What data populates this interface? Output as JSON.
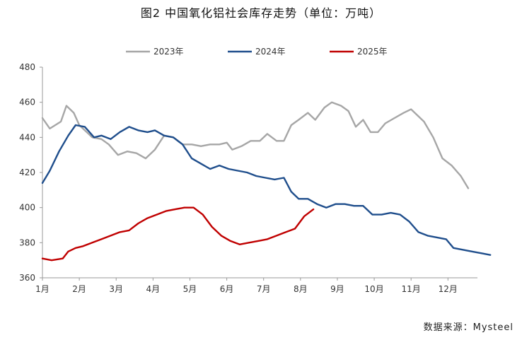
{
  "title": "图2 中国氧化铝社会库存走势（单位：万吨）",
  "source": "数据来源：Mysteel",
  "chart_data": {
    "type": "line",
    "title": "图2 中国氧化铝社会库存走势（单位：万吨）",
    "xlabel": "",
    "ylabel": "",
    "unit": "万吨",
    "categories": [
      "1月",
      "2月",
      "3月",
      "4月",
      "5月",
      "6月",
      "7月",
      "8月",
      "9月",
      "10月",
      "11月",
      "12月"
    ],
    "ylim": [
      360,
      480
    ],
    "yticks": [
      360,
      380,
      400,
      420,
      440,
      460,
      480
    ],
    "grid": false,
    "legend": "top",
    "series": [
      {
        "name": "2023年",
        "color": "#a6a6a6",
        "points": [
          [
            0.0,
            451
          ],
          [
            0.2,
            445
          ],
          [
            0.5,
            449
          ],
          [
            0.65,
            458
          ],
          [
            0.85,
            454
          ],
          [
            1.0,
            447
          ],
          [
            1.35,
            440
          ],
          [
            1.6,
            439
          ],
          [
            1.8,
            436
          ],
          [
            2.05,
            430
          ],
          [
            2.3,
            432
          ],
          [
            2.55,
            431
          ],
          [
            2.8,
            428
          ],
          [
            3.05,
            433
          ],
          [
            3.3,
            441
          ],
          [
            3.55,
            440
          ],
          [
            3.8,
            436
          ],
          [
            4.05,
            436
          ],
          [
            4.3,
            435
          ],
          [
            4.55,
            436
          ],
          [
            4.8,
            436
          ],
          [
            5.0,
            437
          ],
          [
            5.15,
            433
          ],
          [
            5.4,
            435
          ],
          [
            5.65,
            438
          ],
          [
            5.9,
            438
          ],
          [
            6.1,
            442
          ],
          [
            6.35,
            438
          ],
          [
            6.55,
            438
          ],
          [
            6.75,
            447
          ],
          [
            6.95,
            450
          ],
          [
            7.2,
            454
          ],
          [
            7.4,
            450
          ],
          [
            7.65,
            457
          ],
          [
            7.85,
            460
          ],
          [
            8.1,
            458
          ],
          [
            8.3,
            455
          ],
          [
            8.5,
            446
          ],
          [
            8.7,
            450
          ],
          [
            8.9,
            443
          ],
          [
            9.1,
            443
          ],
          [
            9.3,
            448
          ],
          [
            9.55,
            451
          ],
          [
            9.8,
            454
          ],
          [
            10.0,
            456
          ],
          [
            10.35,
            449
          ],
          [
            10.6,
            440
          ],
          [
            10.85,
            428
          ],
          [
            11.1,
            424
          ],
          [
            11.35,
            418
          ],
          [
            11.55,
            411
          ]
        ]
      },
      {
        "name": "2024年",
        "color": "#1f4e8c",
        "points": [
          [
            0.0,
            414
          ],
          [
            0.2,
            421
          ],
          [
            0.45,
            432
          ],
          [
            0.7,
            441
          ],
          [
            0.9,
            447
          ],
          [
            1.15,
            446
          ],
          [
            1.4,
            440
          ],
          [
            1.6,
            441
          ],
          [
            1.85,
            439
          ],
          [
            2.1,
            443
          ],
          [
            2.35,
            446
          ],
          [
            2.6,
            444
          ],
          [
            2.85,
            443
          ],
          [
            3.05,
            444
          ],
          [
            3.3,
            441
          ],
          [
            3.55,
            440
          ],
          [
            3.8,
            436
          ],
          [
            4.05,
            428
          ],
          [
            4.3,
            425
          ],
          [
            4.55,
            422
          ],
          [
            4.8,
            424
          ],
          [
            5.05,
            422
          ],
          [
            5.3,
            421
          ],
          [
            5.55,
            420
          ],
          [
            5.8,
            418
          ],
          [
            6.05,
            417
          ],
          [
            6.3,
            416
          ],
          [
            6.55,
            417
          ],
          [
            6.75,
            409
          ],
          [
            6.95,
            405
          ],
          [
            7.2,
            405
          ],
          [
            7.45,
            402
          ],
          [
            7.7,
            400
          ],
          [
            7.95,
            402
          ],
          [
            8.2,
            402
          ],
          [
            8.45,
            401
          ],
          [
            8.7,
            401
          ],
          [
            8.95,
            396
          ],
          [
            9.2,
            396
          ],
          [
            9.45,
            397
          ],
          [
            9.7,
            396
          ],
          [
            9.95,
            392
          ],
          [
            10.2,
            386
          ],
          [
            10.45,
            384
          ],
          [
            10.7,
            383
          ],
          [
            10.95,
            382
          ],
          [
            11.15,
            377
          ],
          [
            11.4,
            376
          ],
          [
            11.65,
            375
          ],
          [
            11.9,
            374
          ],
          [
            12.15,
            373
          ]
        ]
      },
      {
        "name": "2025年",
        "color": "#c00000",
        "points": [
          [
            0.0,
            371
          ],
          [
            0.25,
            370
          ],
          [
            0.55,
            371
          ],
          [
            0.7,
            375
          ],
          [
            0.9,
            377
          ],
          [
            1.1,
            378
          ],
          [
            1.35,
            380
          ],
          [
            1.6,
            382
          ],
          [
            1.85,
            384
          ],
          [
            2.1,
            386
          ],
          [
            2.35,
            387
          ],
          [
            2.6,
            391
          ],
          [
            2.85,
            394
          ],
          [
            3.1,
            396
          ],
          [
            3.35,
            398
          ],
          [
            3.6,
            399
          ],
          [
            3.85,
            400
          ],
          [
            4.1,
            400
          ],
          [
            4.35,
            396
          ],
          [
            4.6,
            389
          ],
          [
            4.85,
            384
          ],
          [
            5.1,
            381
          ],
          [
            5.35,
            379
          ],
          [
            5.6,
            380
          ],
          [
            5.85,
            381
          ],
          [
            6.1,
            382
          ],
          [
            6.35,
            384
          ],
          [
            6.6,
            386
          ],
          [
            6.85,
            388
          ],
          [
            7.1,
            395
          ],
          [
            7.35,
            399
          ]
        ]
      }
    ]
  }
}
